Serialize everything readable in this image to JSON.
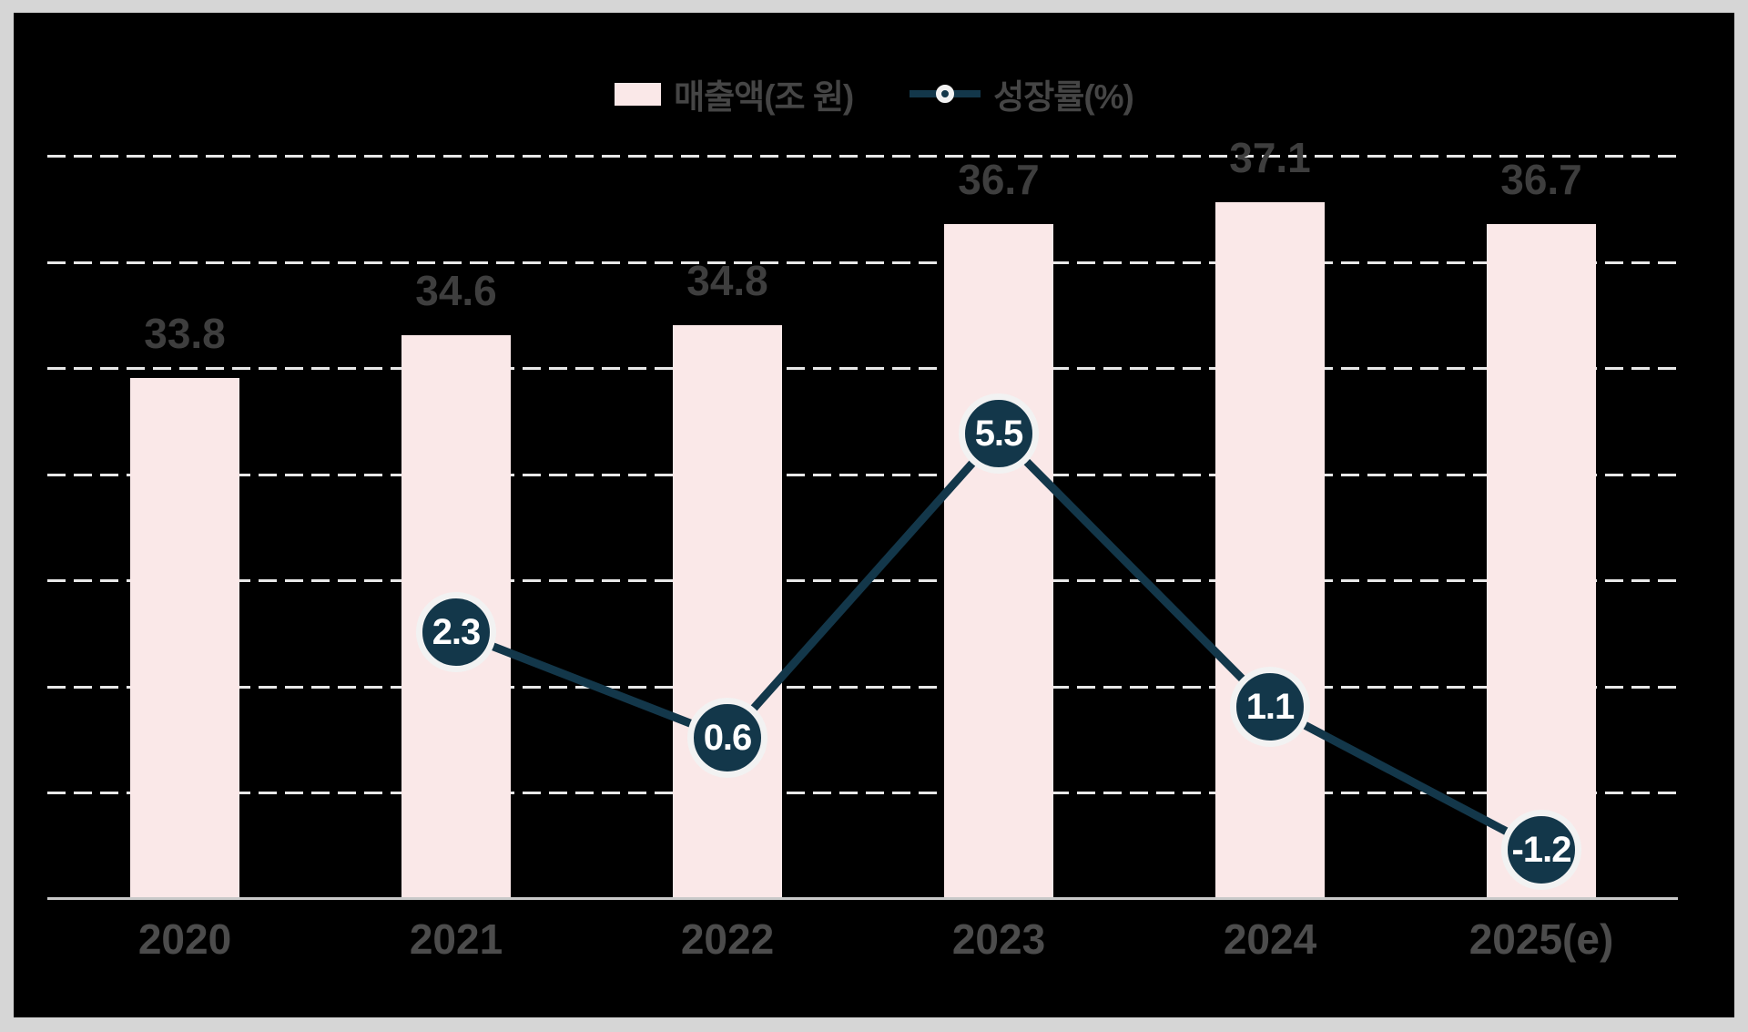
{
  "legend": {
    "bar_label": "매출액(조 원)",
    "line_label": "성장률(%)"
  },
  "colors": {
    "frame": "#d6d6d6",
    "background": "#000000",
    "bar": "#fae8e8",
    "line": "#13374a",
    "marker_fill": "#13374a",
    "marker_ring": "#f2f2f2",
    "marker_text": "#ffffff",
    "gridline": "#e8e8e8",
    "baseline": "#c9c9c9",
    "value_label": "#3e3e3e",
    "axis_label": "#4c4c4c"
  },
  "chart_data": {
    "type": "bar",
    "subtype": "bar-line-combo",
    "categories": [
      "2020",
      "2021",
      "2022",
      "2023",
      "2024",
      "2025(e)"
    ],
    "series": [
      {
        "name": "매출액(조 원)",
        "type": "bar",
        "values": [
          33.8,
          34.6,
          34.8,
          36.7,
          37.1,
          36.7
        ],
        "data_labels": [
          "33.8",
          "34.6",
          "34.8",
          "36.7",
          "37.1",
          "36.7"
        ]
      },
      {
        "name": "성장률(%)",
        "type": "line",
        "values": [
          null,
          2.3,
          0.6,
          5.5,
          1.1,
          -1.2
        ],
        "data_labels": [
          "",
          "2.3",
          "0.6",
          "5.5",
          "1.1",
          "-1.2"
        ]
      }
    ],
    "title": "",
    "xlabel": "",
    "ylabel": "",
    "bar_axis_range": [
      24,
      38
    ],
    "bar_axis_gridline_step": 2,
    "growth_axis_hint": "zero near lower third, ~2 units per gridline",
    "grid": "horizontal dashed, no axis tick labels",
    "legend_position": "top center"
  }
}
